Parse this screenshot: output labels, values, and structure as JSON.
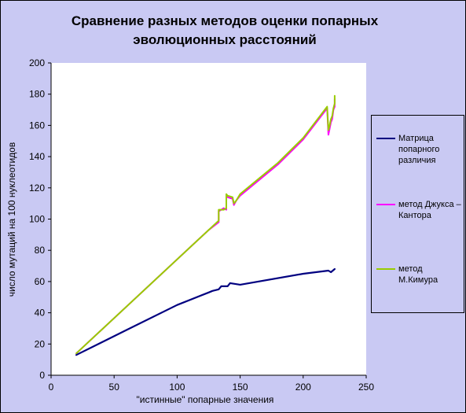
{
  "chart_data": {
    "type": "line",
    "title_lines": [
      "Сравнение разных методов оценки попарных",
      "эволюционных расстояний"
    ],
    "xlabel": "\"истинные\" попарные значения",
    "ylabel": "число мутаций на 100 нуклеотидов",
    "xlim": [
      0,
      250
    ],
    "ylim": [
      0,
      200
    ],
    "xticks": [
      0,
      50,
      100,
      150,
      200,
      250
    ],
    "yticks": [
      0,
      20,
      40,
      60,
      80,
      100,
      120,
      140,
      160,
      180,
      200
    ],
    "grid": false,
    "legend_position": "right",
    "series": [
      {
        "name": "Матрица попарного различия",
        "name_lines": [
          "Матрица",
          "попарного",
          "различия"
        ],
        "color": "#000080",
        "x": [
          20,
          60,
          100,
          125,
          128,
          133,
          135,
          140,
          142,
          150,
          200,
          220,
          222,
          225
        ],
        "y": [
          13,
          29,
          45,
          53,
          54,
          55,
          57,
          57,
          59,
          58,
          65,
          67,
          66,
          68
        ]
      },
      {
        "name": "метод Джукса – Кантора",
        "name_lines": [
          "метод Джукса –",
          "Кантора"
        ],
        "color": "#ff00ff",
        "x": [
          20,
          125,
          133,
          133,
          137,
          139,
          139,
          140,
          144,
          145,
          147,
          150,
          180,
          200,
          219,
          220,
          221,
          222,
          223,
          224,
          225,
          225
        ],
        "y": [
          14,
          93,
          98,
          105,
          107,
          106,
          115,
          114,
          113,
          109,
          112,
          115,
          135,
          151,
          171,
          154,
          158,
          162,
          164,
          170,
          172,
          177
        ]
      },
      {
        "name": "метод М.Кимура",
        "name_lines": [
          "метод М.Кимура"
        ],
        "color": "#99cc00",
        "x": [
          20,
          125,
          133,
          133,
          137,
          139,
          139,
          140,
          144,
          145,
          147,
          150,
          180,
          200,
          219,
          220,
          221,
          222,
          223,
          224,
          225,
          225
        ],
        "y": [
          14,
          93,
          99,
          106,
          106,
          107,
          116,
          115,
          114,
          110,
          112,
          116,
          136,
          152,
          172,
          157,
          160,
          164,
          166,
          171,
          174,
          179
        ]
      }
    ]
  }
}
